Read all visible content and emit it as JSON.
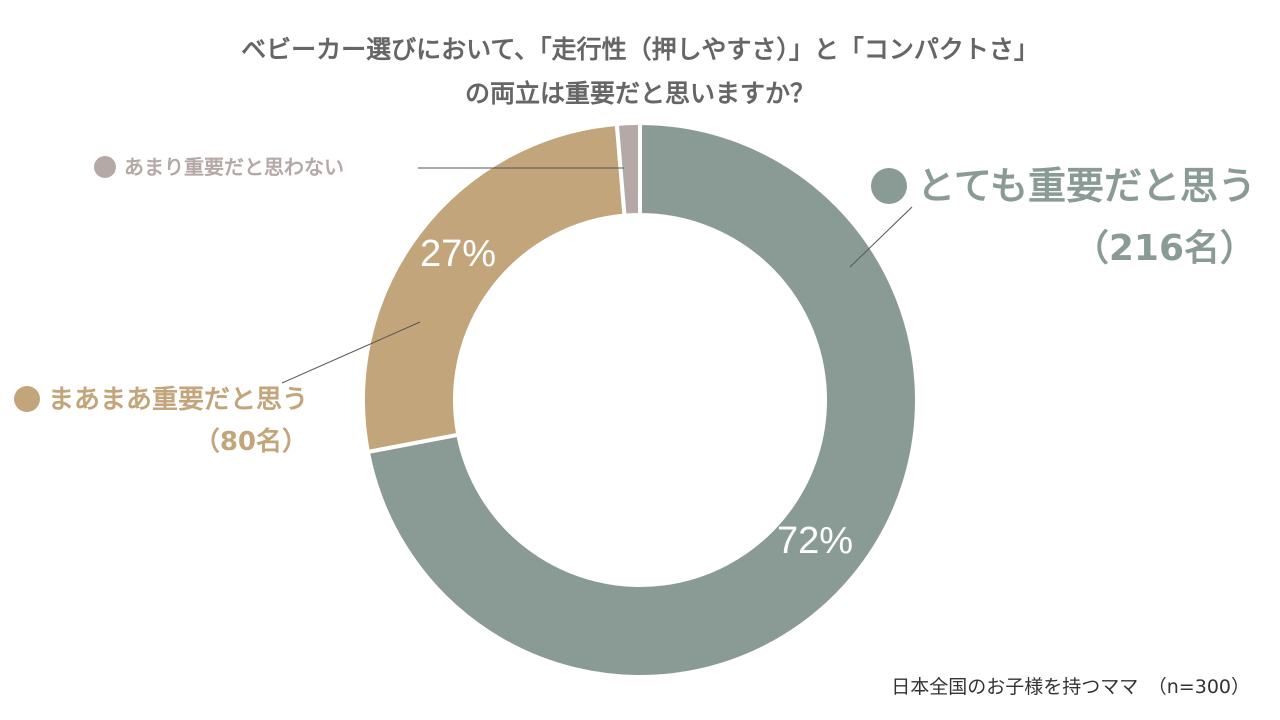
{
  "title": {
    "line1": "ベビーカー選びにおいて、「走行性（押しやすさ）」と「コンパクトさ」",
    "line2": "の両立は重要だと思いますか？"
  },
  "footnote": "日本全国のお子様を持つママ　（n=300）",
  "colors": {
    "very_important": "#8a9b96",
    "somewhat_important": "#c3a57c",
    "not_important": "#b5a9a7",
    "separator": "#ffffff",
    "leader_line": "#555555"
  },
  "legend": {
    "very_important": {
      "label": "とても重要だと思う",
      "count": "（216名）"
    },
    "somewhat_important": {
      "label": "まあまあ重要だと思う",
      "count": "（80名）"
    },
    "not_important": {
      "label": "あまり重要だと思わない"
    }
  },
  "chart_data": {
    "type": "pie",
    "title": "ベビーカー選びにおいて、「走行性（押しやすさ）」と「コンパクトさ」の両立は重要だと思いますか？",
    "categories": [
      "とても重要だと思う",
      "まあまあ重要だと思う",
      "あまり重要だと思わない"
    ],
    "values": [
      216,
      80,
      4
    ],
    "percent_labels": [
      "72%",
      "27%",
      ""
    ],
    "donut": true,
    "n": 300
  }
}
